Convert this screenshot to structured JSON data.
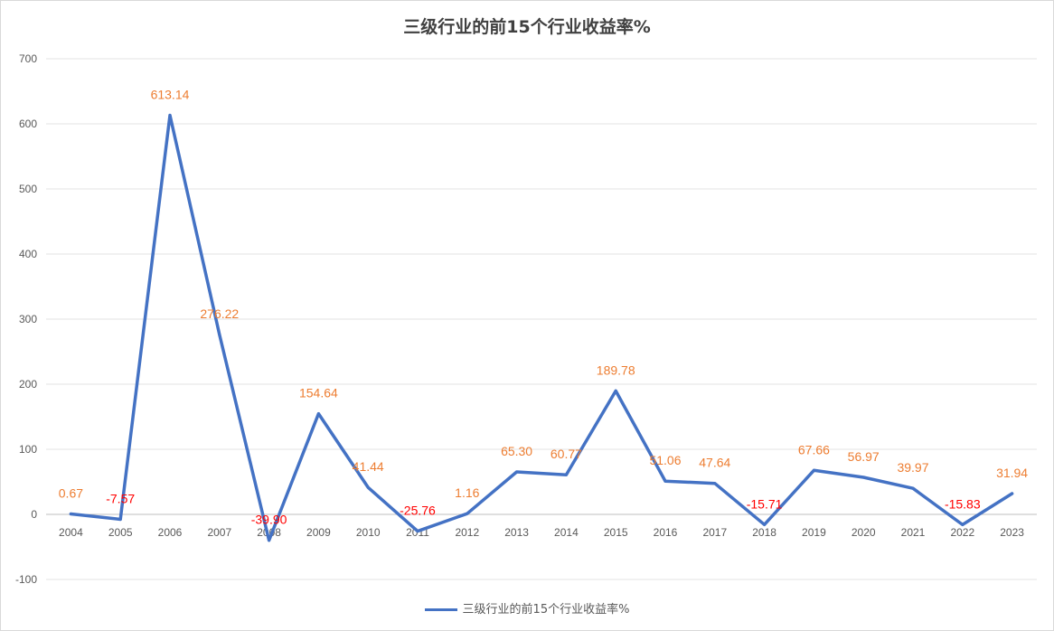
{
  "chart_data": {
    "type": "line",
    "title": "三级行业的前15个行业收益率%",
    "xlabel": "",
    "ylabel": "",
    "ylim": [
      -100,
      700
    ],
    "yticks": [
      "-100",
      "0",
      "100",
      "200",
      "300",
      "400",
      "500",
      "600",
      "700"
    ],
    "categories": [
      "2004",
      "2005",
      "2006",
      "2007",
      "2008",
      "2009",
      "2010",
      "2011",
      "2012",
      "2013",
      "2014",
      "2015",
      "2016",
      "2017",
      "2018",
      "2019",
      "2020",
      "2021",
      "2022",
      "2023"
    ],
    "series": [
      {
        "name": "三级行业的前15个行业收益率%",
        "values": [
          0.67,
          -7.57,
          613.14,
          276.22,
          -39.9,
          154.64,
          41.44,
          -25.76,
          1.16,
          65.3,
          60.77,
          189.78,
          51.06,
          47.64,
          -15.71,
          67.66,
          56.97,
          39.97,
          -15.83,
          31.94
        ],
        "labels": [
          "0.67",
          "-7.57",
          "613.14",
          "276.22",
          "-39.90",
          "154.64",
          "41.44",
          "-25.76",
          "1.16",
          "65.30",
          "60.77",
          "189.78",
          "51.06",
          "47.64",
          "-15.71",
          "67.66",
          "56.97",
          "39.97",
          "-15.83",
          "31.94"
        ],
        "color": "#4472c4"
      }
    ],
    "label_color_positive": "#ed7d31",
    "label_color_negative": "#ff0000",
    "gridlines": true,
    "legend_position": "bottom"
  }
}
